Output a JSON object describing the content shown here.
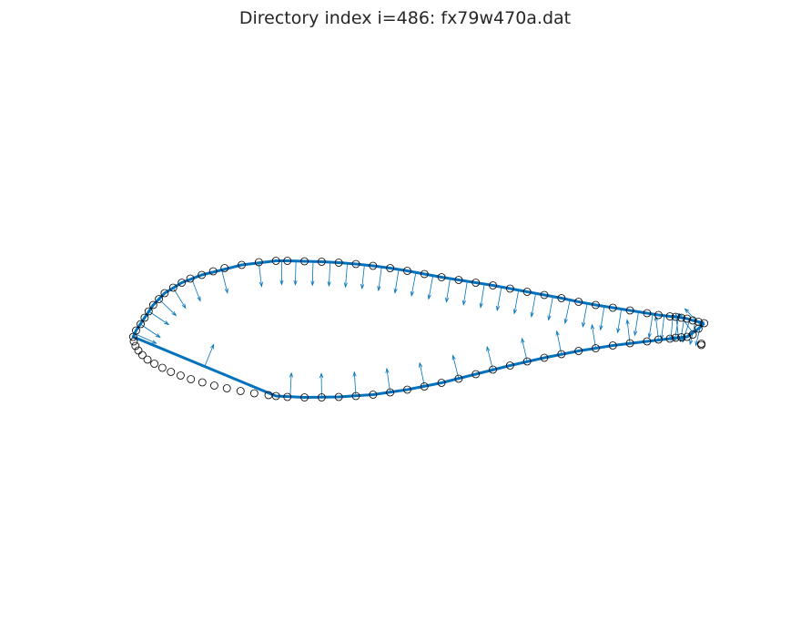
{
  "title": "Directory index i=486: fx79w470a.dat",
  "colors": {
    "line": "#0072bd",
    "marker": "#000000",
    "background": "#ffffff"
  },
  "chart_data": {
    "type": "scatter",
    "title": "Directory index i=486: fx79w470a.dat",
    "xlabel": "",
    "ylabel": "",
    "axes_visible": false,
    "grid": false,
    "legend": "none",
    "description_of_marks": "airfoil section points (open circles), polyline through a subset of points, and unit normal vectors (quiver arrows)",
    "xlim": [
      -0.05,
      1.05
    ],
    "ylim": [
      -0.45,
      0.45
    ],
    "points": [
      [
        1.0,
        0.0
      ],
      [
        0.99,
        0.003
      ],
      [
        0.98,
        0.006
      ],
      [
        0.97,
        0.01
      ],
      [
        0.96,
        0.012
      ],
      [
        0.95,
        0.014
      ],
      [
        0.94,
        0.015
      ],
      [
        0.92,
        0.018
      ],
      [
        0.9,
        0.022
      ],
      [
        0.87,
        0.028
      ],
      [
        0.84,
        0.034
      ],
      [
        0.81,
        0.04
      ],
      [
        0.78,
        0.047
      ],
      [
        0.75,
        0.055
      ],
      [
        0.72,
        0.062
      ],
      [
        0.69,
        0.069
      ],
      [
        0.66,
        0.076
      ],
      [
        0.63,
        0.083
      ],
      [
        0.6,
        0.089
      ],
      [
        0.57,
        0.095
      ],
      [
        0.54,
        0.101
      ],
      [
        0.51,
        0.108
      ],
      [
        0.48,
        0.115
      ],
      [
        0.45,
        0.121
      ],
      [
        0.42,
        0.126
      ],
      [
        0.39,
        0.13
      ],
      [
        0.36,
        0.133
      ],
      [
        0.33,
        0.135
      ],
      [
        0.3,
        0.136
      ],
      [
        0.27,
        0.137
      ],
      [
        0.25,
        0.137
      ],
      [
        0.22,
        0.134
      ],
      [
        0.19,
        0.128
      ],
      [
        0.16,
        0.121
      ],
      [
        0.14,
        0.114
      ],
      [
        0.12,
        0.106
      ],
      [
        0.1,
        0.098
      ],
      [
        0.085,
        0.089
      ],
      [
        0.07,
        0.078
      ],
      [
        0.055,
        0.066
      ],
      [
        0.045,
        0.053
      ],
      [
        0.035,
        0.04
      ],
      [
        0.027,
        0.026
      ],
      [
        0.02,
        0.012
      ],
      [
        0.013,
        -0.002
      ],
      [
        0.005,
        -0.016
      ],
      [
        0.0,
        -0.03
      ],
      [
        0.001,
        -0.04
      ],
      [
        0.004,
        -0.05
      ],
      [
        0.009,
        -0.06
      ],
      [
        0.016,
        -0.07
      ],
      [
        0.025,
        -0.08
      ],
      [
        0.037,
        -0.089
      ],
      [
        0.051,
        -0.098
      ],
      [
        0.066,
        -0.107
      ],
      [
        0.083,
        -0.115
      ],
      [
        0.101,
        -0.123
      ],
      [
        0.121,
        -0.13
      ],
      [
        0.142,
        -0.137
      ],
      [
        0.164,
        -0.143
      ],
      [
        0.188,
        -0.149
      ],
      [
        0.212,
        -0.154
      ],
      [
        0.237,
        -0.158
      ],
      [
        0.25,
        -0.16
      ],
      [
        0.27,
        -0.162
      ],
      [
        0.3,
        -0.163
      ],
      [
        0.33,
        -0.163
      ],
      [
        0.36,
        -0.162
      ],
      [
        0.39,
        -0.16
      ],
      [
        0.42,
        -0.157
      ],
      [
        0.45,
        -0.152
      ],
      [
        0.48,
        -0.146
      ],
      [
        0.51,
        -0.139
      ],
      [
        0.54,
        -0.131
      ],
      [
        0.57,
        -0.122
      ],
      [
        0.6,
        -0.112
      ],
      [
        0.63,
        -0.102
      ],
      [
        0.66,
        -0.093
      ],
      [
        0.69,
        -0.084
      ],
      [
        0.72,
        -0.076
      ],
      [
        0.75,
        -0.068
      ],
      [
        0.78,
        -0.061
      ],
      [
        0.81,
        -0.055
      ],
      [
        0.84,
        -0.049
      ],
      [
        0.87,
        -0.044
      ],
      [
        0.9,
        -0.04
      ],
      [
        0.92,
        -0.036
      ],
      [
        0.94,
        -0.034
      ],
      [
        0.95,
        -0.032
      ],
      [
        0.96,
        -0.031
      ],
      [
        0.97,
        -0.03
      ],
      [
        0.98,
        -0.025
      ],
      [
        0.99,
        -0.012
      ],
      [
        0.995,
        -0.048
      ],
      [
        0.995,
        -0.045
      ]
    ],
    "polyline": [
      [
        1.0,
        0.0
      ],
      [
        0.99,
        0.003
      ],
      [
        0.98,
        0.006
      ],
      [
        0.97,
        0.01
      ],
      [
        0.96,
        0.012
      ],
      [
        0.95,
        0.014
      ],
      [
        0.94,
        0.015
      ],
      [
        0.92,
        0.018
      ],
      [
        0.9,
        0.022
      ],
      [
        0.87,
        0.028
      ],
      [
        0.84,
        0.034
      ],
      [
        0.81,
        0.04
      ],
      [
        0.78,
        0.047
      ],
      [
        0.75,
        0.055
      ],
      [
        0.72,
        0.062
      ],
      [
        0.69,
        0.069
      ],
      [
        0.66,
        0.076
      ],
      [
        0.63,
        0.083
      ],
      [
        0.6,
        0.089
      ],
      [
        0.57,
        0.095
      ],
      [
        0.54,
        0.101
      ],
      [
        0.51,
        0.108
      ],
      [
        0.48,
        0.115
      ],
      [
        0.45,
        0.121
      ],
      [
        0.42,
        0.126
      ],
      [
        0.39,
        0.13
      ],
      [
        0.36,
        0.133
      ],
      [
        0.33,
        0.135
      ],
      [
        0.3,
        0.136
      ],
      [
        0.27,
        0.137
      ],
      [
        0.25,
        0.137
      ],
      [
        0.19,
        0.128
      ],
      [
        0.12,
        0.106
      ],
      [
        0.085,
        0.089
      ],
      [
        0.055,
        0.066
      ],
      [
        0.035,
        0.04
      ],
      [
        0.02,
        0.012
      ],
      [
        0.005,
        -0.016
      ],
      [
        0.0,
        -0.03
      ],
      [
        0.25,
        -0.16
      ],
      [
        0.3,
        -0.163
      ],
      [
        0.36,
        -0.162
      ],
      [
        0.42,
        -0.157
      ],
      [
        0.48,
        -0.146
      ],
      [
        0.54,
        -0.131
      ],
      [
        0.6,
        -0.112
      ],
      [
        0.66,
        -0.093
      ],
      [
        0.72,
        -0.076
      ],
      [
        0.78,
        -0.061
      ],
      [
        0.84,
        -0.049
      ],
      [
        0.9,
        -0.04
      ],
      [
        0.94,
        -0.034
      ],
      [
        0.97,
        -0.03
      ],
      [
        0.99,
        -0.012
      ],
      [
        1.0,
        0.0
      ]
    ]
  }
}
